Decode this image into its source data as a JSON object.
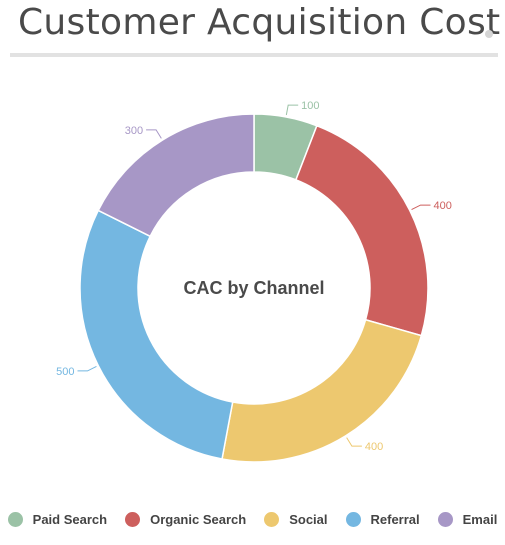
{
  "header": {
    "title": "Customer Acquisition Cost"
  },
  "chart_data": {
    "type": "pie",
    "title": "CAC by Channel",
    "donut": true,
    "categories": [
      "Paid Search",
      "Organic Search",
      "Social",
      "Referral",
      "Email"
    ],
    "values": [
      100,
      400,
      400,
      500,
      300
    ],
    "colors": [
      "#9bc2a6",
      "#cd5f5d",
      "#edc86f",
      "#74b7e1",
      "#a797c6"
    ],
    "legend": "bottom"
  }
}
